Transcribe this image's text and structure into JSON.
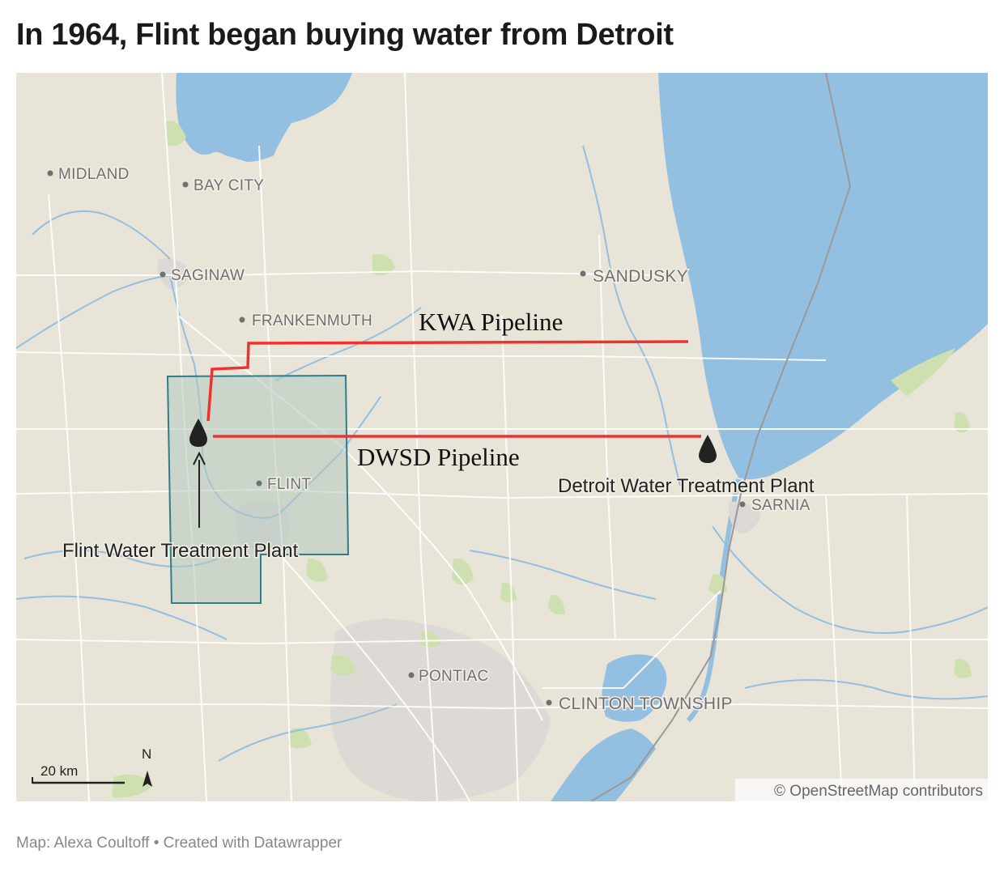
{
  "title": "In 1964, Flint began buying water from Detroit",
  "footer": "Map: Alexa Coultoff • Created with Datawrapper",
  "colors": {
    "land": "#e8e4d8",
    "water": "#93bfe0",
    "pipeline": "#f0312f",
    "region_fill": "#b5c9c0",
    "region_stroke": "#2e7d8c"
  },
  "cities": {
    "midland": "MIDLAND",
    "bay_city": "BAY CITY",
    "saginaw": "SAGINAW",
    "frankenmuth": "FRANKENMUTH",
    "sandusky": "SANDUSKY",
    "flint": "FLINT",
    "sarnia": "SARNIA",
    "pontiac": "PONTIAC",
    "clinton_township": "CLINTON TOWNSHIP"
  },
  "pipelines": {
    "kwa": "KWA Pipeline",
    "dwsd": "DWSD Pipeline"
  },
  "plants": {
    "flint": "Flint Water Treatment Plant",
    "detroit": "Detroit Water Treatment Plant"
  },
  "scale": {
    "label": "20 km"
  },
  "north": {
    "label": "N"
  },
  "attribution": "© OpenStreetMap contributors"
}
